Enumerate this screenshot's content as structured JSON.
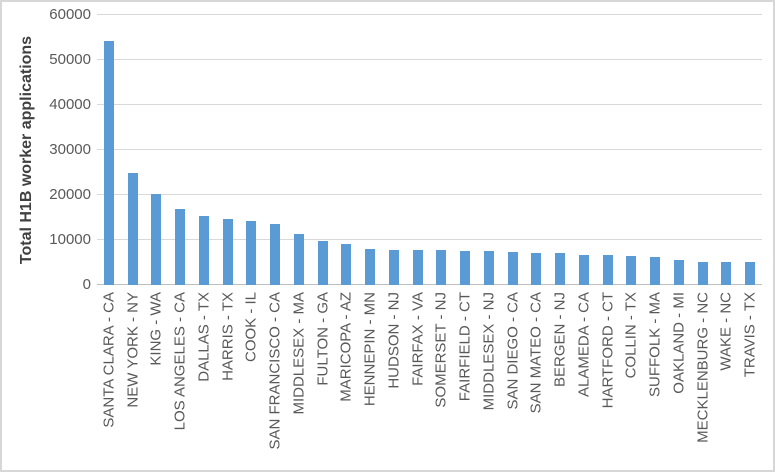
{
  "window": {
    "background": "#ffffff",
    "border_color": "#d7d7d7"
  },
  "chart_data": {
    "type": "bar",
    "title": "",
    "xlabel": "",
    "ylabel": "Total H1B worker applications",
    "ylim": [
      0,
      60000
    ],
    "yticks": [
      0,
      10000,
      20000,
      30000,
      40000,
      50000,
      60000
    ],
    "grid": "horizontal",
    "legend_position": "none",
    "bar_color": "#5b9bd5",
    "gridline_color": "#d9d9d9",
    "axis_line_color": "#bfbfbf",
    "tick_label_color": "#595959",
    "axis_title_color": "#404040",
    "categories": [
      "SANTA CLARA - CA",
      "NEW YORK - NY",
      "KING - WA",
      "LOS ANGELES - CA",
      "DALLAS - TX",
      "HARRIS - TX",
      "COOK - IL",
      "SAN FRANCISCO - CA",
      "MIDDLESEX - MA",
      "FULTON - GA",
      "MARICOPA - AZ",
      "HENNEPIN - MN",
      "HUDSON - NJ",
      "FAIRFAX - VA",
      "SOMERSET - NJ",
      "FAIRFIELD - CT",
      "MIDDLESEX - NJ",
      "SAN DIEGO - CA",
      "SAN MATEO - CA",
      "BERGEN - NJ",
      "ALAMEDA - CA",
      "HARTFORD - CT",
      "COLLIN - TX",
      "SUFFOLK - MA",
      "OAKLAND - MI",
      "MECKLENBURG - NC",
      "WAKE - NC",
      "TRAVIS - TX"
    ],
    "values": [
      54300,
      25000,
      20200,
      16800,
      15300,
      14700,
      14200,
      13500,
      11300,
      9800,
      9100,
      7900,
      7800,
      7800,
      7700,
      7600,
      7500,
      7300,
      7200,
      7200,
      6600,
      6600,
      6500,
      6300,
      5600,
      5200,
      5200,
      5100
    ]
  }
}
